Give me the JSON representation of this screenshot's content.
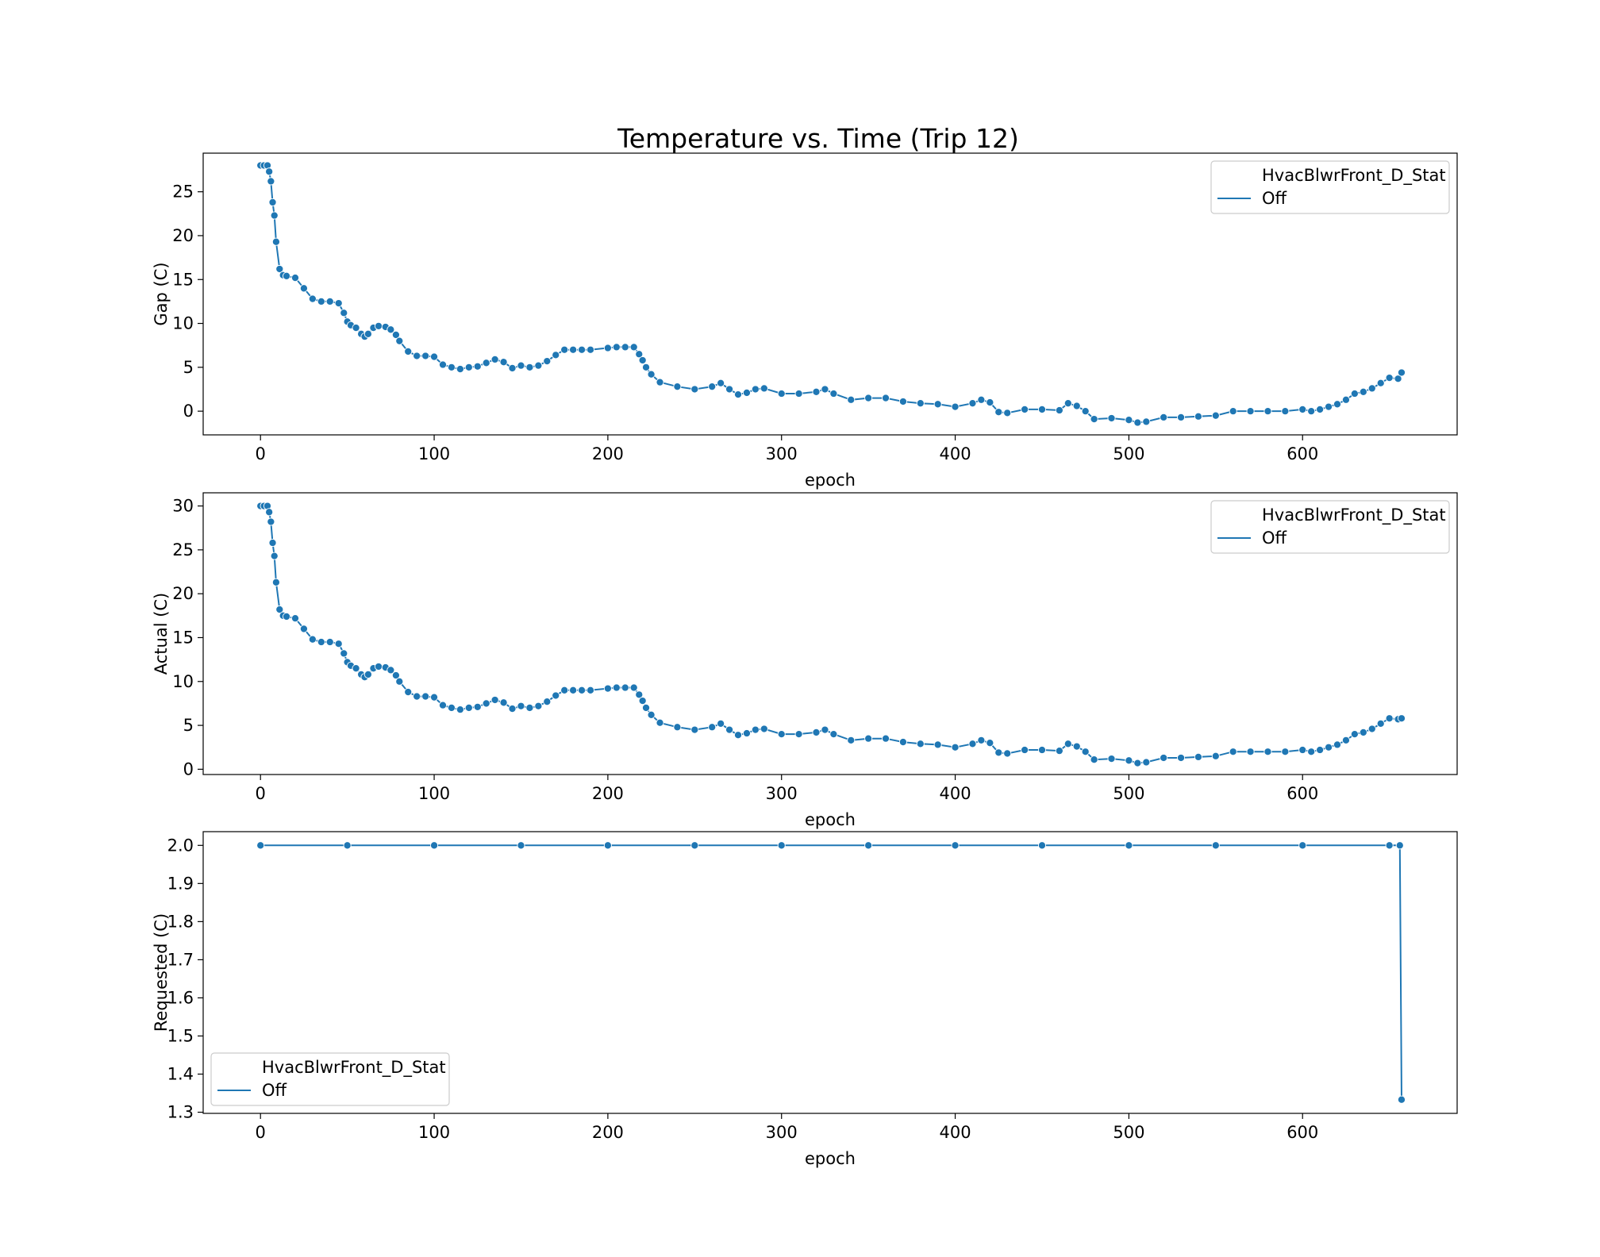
{
  "title": "Temperature vs. Time (Trip 12)",
  "colors": {
    "series": "#1f77b4",
    "marker_edge": "#ffffff",
    "axes": "#000000",
    "legend_frame": "#cccccc"
  },
  "chart_data": [
    {
      "type": "line",
      "xlabel": "epoch",
      "ylabel": "Gap (C)",
      "xlim": [
        -33,
        689
      ],
      "ylim": [
        -2.7,
        29.4
      ],
      "x_ticks": [
        0,
        100,
        200,
        300,
        400,
        500,
        600
      ],
      "y_ticks": [
        0,
        5,
        10,
        15,
        20,
        25
      ],
      "grid": false,
      "markers": true,
      "legend": {
        "title": "HvacBlwrFront_D_Stat",
        "entries": [
          "Off"
        ],
        "placement": "upper right"
      },
      "series": [
        {
          "name": "Off",
          "x": [
            0,
            2,
            4,
            5,
            6,
            7,
            8,
            9,
            11,
            13,
            15,
            20,
            25,
            30,
            35,
            40,
            45,
            48,
            50,
            52,
            55,
            58,
            60,
            62,
            65,
            68,
            72,
            75,
            78,
            80,
            85,
            90,
            95,
            100,
            105,
            110,
            115,
            120,
            125,
            130,
            135,
            140,
            145,
            150,
            155,
            160,
            165,
            170,
            175,
            180,
            185,
            190,
            200,
            205,
            210,
            215,
            218,
            220,
            222,
            225,
            230,
            240,
            250,
            260,
            265,
            270,
            275,
            280,
            285,
            290,
            300,
            310,
            320,
            325,
            330,
            340,
            350,
            360,
            370,
            380,
            390,
            400,
            410,
            415,
            420,
            425,
            430,
            440,
            450,
            460,
            465,
            470,
            475,
            480,
            490,
            500,
            505,
            510,
            520,
            530,
            540,
            550,
            560,
            570,
            580,
            590,
            600,
            605,
            610,
            615,
            620,
            625,
            630,
            635,
            640,
            645,
            650,
            655,
            657
          ],
          "y": [
            28,
            28,
            28,
            27.3,
            26.2,
            23.8,
            22.3,
            19.3,
            16.2,
            15.5,
            15.4,
            15.2,
            14.0,
            12.8,
            12.5,
            12.5,
            12.3,
            11.2,
            10.2,
            9.8,
            9.5,
            8.8,
            8.5,
            8.8,
            9.5,
            9.7,
            9.6,
            9.3,
            8.7,
            8.0,
            6.8,
            6.3,
            6.3,
            6.2,
            5.3,
            5.0,
            4.8,
            5.0,
            5.1,
            5.5,
            5.9,
            5.6,
            4.9,
            5.2,
            5.0,
            5.2,
            5.7,
            6.4,
            7.0,
            7.0,
            7.0,
            7.0,
            7.2,
            7.3,
            7.3,
            7.3,
            6.5,
            5.8,
            5.0,
            4.2,
            3.3,
            2.8,
            2.5,
            2.8,
            3.2,
            2.5,
            1.9,
            2.1,
            2.5,
            2.6,
            2.0,
            2.0,
            2.2,
            2.5,
            2.0,
            1.3,
            1.5,
            1.5,
            1.1,
            0.9,
            0.8,
            0.5,
            0.9,
            1.3,
            1.0,
            -0.1,
            -0.2,
            0.2,
            0.2,
            0.1,
            0.9,
            0.6,
            0.0,
            -0.9,
            -0.8,
            -1.0,
            -1.3,
            -1.2,
            -0.7,
            -0.7,
            -0.6,
            -0.5,
            0.0,
            0.0,
            0.0,
            0.0,
            0.2,
            0.0,
            0.2,
            0.5,
            0.8,
            1.3,
            2.0,
            2.2,
            2.6,
            3.2,
            3.8,
            3.7,
            4.4
          ]
        }
      ]
    },
    {
      "type": "line",
      "xlabel": "epoch",
      "ylabel": "Actual (C)",
      "xlim": [
        -33,
        689
      ],
      "ylim": [
        -0.6,
        31.5
      ],
      "x_ticks": [
        0,
        100,
        200,
        300,
        400,
        500,
        600
      ],
      "y_ticks": [
        0,
        5,
        10,
        15,
        20,
        25,
        30
      ],
      "grid": false,
      "markers": true,
      "legend": {
        "title": "HvacBlwrFront_D_Stat",
        "entries": [
          "Off"
        ],
        "placement": "upper right"
      },
      "series": [
        {
          "name": "Off",
          "x": [
            0,
            2,
            4,
            5,
            6,
            7,
            8,
            9,
            11,
            13,
            15,
            20,
            25,
            30,
            35,
            40,
            45,
            48,
            50,
            52,
            55,
            58,
            60,
            62,
            65,
            68,
            72,
            75,
            78,
            80,
            85,
            90,
            95,
            100,
            105,
            110,
            115,
            120,
            125,
            130,
            135,
            140,
            145,
            150,
            155,
            160,
            165,
            170,
            175,
            180,
            185,
            190,
            200,
            205,
            210,
            215,
            218,
            220,
            222,
            225,
            230,
            240,
            250,
            260,
            265,
            270,
            275,
            280,
            285,
            290,
            300,
            310,
            320,
            325,
            330,
            340,
            350,
            360,
            370,
            380,
            390,
            400,
            410,
            415,
            420,
            425,
            430,
            440,
            450,
            460,
            465,
            470,
            475,
            480,
            490,
            500,
            505,
            510,
            520,
            530,
            540,
            550,
            560,
            570,
            580,
            590,
            600,
            605,
            610,
            615,
            620,
            625,
            630,
            635,
            640,
            645,
            650,
            655,
            657
          ],
          "y": [
            30,
            30,
            30,
            29.3,
            28.2,
            25.8,
            24.3,
            21.3,
            18.2,
            17.5,
            17.4,
            17.2,
            16.0,
            14.8,
            14.5,
            14.5,
            14.3,
            13.2,
            12.2,
            11.8,
            11.5,
            10.8,
            10.5,
            10.8,
            11.5,
            11.7,
            11.6,
            11.3,
            10.7,
            10.0,
            8.8,
            8.3,
            8.3,
            8.2,
            7.3,
            7.0,
            6.8,
            7.0,
            7.1,
            7.5,
            7.9,
            7.6,
            6.9,
            7.2,
            7.0,
            7.2,
            7.7,
            8.4,
            9.0,
            9.0,
            9.0,
            9.0,
            9.2,
            9.3,
            9.3,
            9.3,
            8.5,
            7.8,
            7.0,
            6.2,
            5.3,
            4.8,
            4.5,
            4.8,
            5.2,
            4.5,
            3.9,
            4.1,
            4.5,
            4.6,
            4.0,
            4.0,
            4.2,
            4.5,
            4.0,
            3.3,
            3.5,
            3.5,
            3.1,
            2.9,
            2.8,
            2.5,
            2.9,
            3.3,
            3.0,
            1.9,
            1.8,
            2.2,
            2.2,
            2.1,
            2.9,
            2.6,
            2.0,
            1.1,
            1.2,
            1.0,
            0.7,
            0.8,
            1.3,
            1.3,
            1.4,
            1.5,
            2.0,
            2.0,
            2.0,
            2.0,
            2.2,
            2.0,
            2.2,
            2.5,
            2.8,
            3.3,
            4.0,
            4.2,
            4.6,
            5.2,
            5.8,
            5.7,
            5.8
          ]
        }
      ]
    },
    {
      "type": "line",
      "xlabel": "epoch",
      "ylabel": "Requested (C)",
      "xlim": [
        -33,
        689
      ],
      "ylim": [
        1.297,
        2.036
      ],
      "x_ticks": [
        0,
        100,
        200,
        300,
        400,
        500,
        600
      ],
      "y_ticks": [
        1.3,
        1.4,
        1.5,
        1.6,
        1.7,
        1.8,
        1.9,
        2.0
      ],
      "grid": false,
      "markers": true,
      "legend": {
        "title": "HvacBlwrFront_D_Stat",
        "entries": [
          "Off"
        ],
        "placement": "lower left"
      },
      "series": [
        {
          "name": "Off",
          "x": [
            0,
            50,
            100,
            150,
            200,
            250,
            300,
            350,
            400,
            450,
            500,
            550,
            600,
            650,
            656,
            657
          ],
          "y": [
            2.0,
            2.0,
            2.0,
            2.0,
            2.0,
            2.0,
            2.0,
            2.0,
            2.0,
            2.0,
            2.0,
            2.0,
            2.0,
            2.0,
            2.0,
            1.333
          ]
        }
      ]
    }
  ]
}
